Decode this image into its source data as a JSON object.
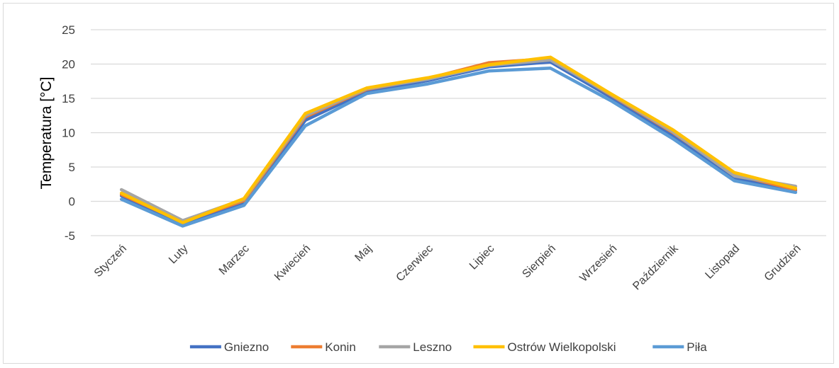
{
  "chart_data": {
    "type": "line",
    "title": "",
    "xlabel": "",
    "ylabel": "Temperatura [°C]",
    "ylim": [
      -5,
      25
    ],
    "yticks": [
      -5,
      0,
      5,
      10,
      15,
      20,
      25
    ],
    "grid": true,
    "legend": "bottom",
    "categories": [
      "Styczeń",
      "Luty",
      "Marzec",
      "Kwiecień",
      "Maj",
      "Czerwiec",
      "Lipiec",
      "Sierpień",
      "Wrzesień",
      "Październik",
      "Listopad",
      "Grudzień"
    ],
    "series": [
      {
        "name": "Gniezno",
        "color": "#4472C4",
        "values": [
          0.8,
          -3.2,
          -0.2,
          11.8,
          16.0,
          17.6,
          19.6,
          20.3,
          15.1,
          9.6,
          3.4,
          1.6
        ]
      },
      {
        "name": "Konin",
        "color": "#ED7D31",
        "values": [
          1.0,
          -3.0,
          0.1,
          12.3,
          16.3,
          17.9,
          20.2,
          20.8,
          15.4,
          10.0,
          3.9,
          1.7
        ]
      },
      {
        "name": "Leszno",
        "color": "#A5A5A5",
        "values": [
          1.7,
          -2.8,
          0.3,
          12.5,
          16.4,
          17.8,
          19.8,
          20.6,
          15.5,
          10.1,
          3.7,
          2.2
        ]
      },
      {
        "name": "Ostrów Wielkopolski",
        "color": "#FFC000",
        "values": [
          1.2,
          -3.1,
          0.4,
          12.8,
          16.5,
          18.0,
          19.9,
          21.0,
          15.6,
          10.4,
          4.2,
          1.9
        ]
      },
      {
        "name": "Piła",
        "color": "#5B9BD5",
        "values": [
          0.3,
          -3.6,
          -0.6,
          11.0,
          15.7,
          17.1,
          19.0,
          19.4,
          14.6,
          9.1,
          3.0,
          1.3
        ]
      }
    ]
  }
}
